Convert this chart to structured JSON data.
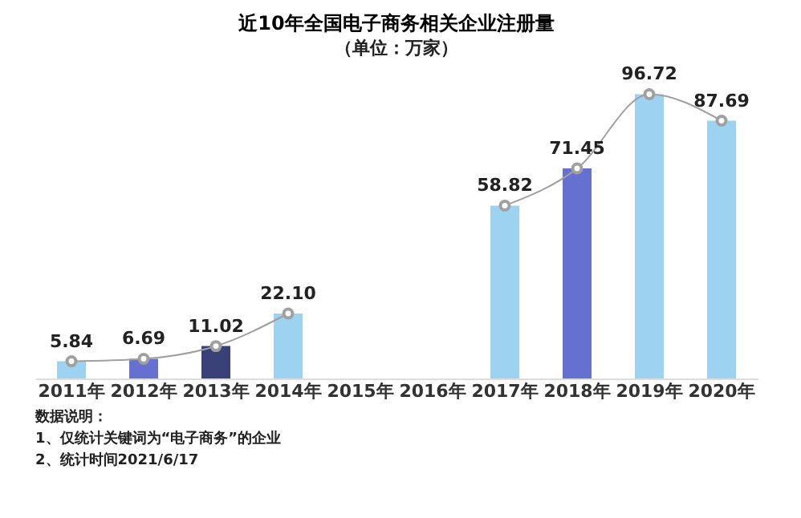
{
  "chart_data": {
    "type": "bar",
    "title": "近10年全国电子商务相关企业注册量",
    "subtitle": "（单位：万家）",
    "categories": [
      "2011年",
      "2012年",
      "2013年",
      "2014年",
      "2015年",
      "2016年",
      "2017年",
      "2018年",
      "2019年",
      "2020年"
    ],
    "series": [
      {
        "colors": [
          "#9dd3f0",
          "#6670d0",
          "#3a4178",
          "#9dd3f0",
          "#6670d0",
          "#3a4178",
          "#9dd3f0",
          "#6670d0",
          "#9dd3f0",
          "#9dd3f0"
        ],
        "values": [
          5.84,
          6.69,
          11.02,
          22.1,
          null,
          null,
          58.82,
          71.45,
          96.72,
          87.69
        ],
        "value_labels": [
          "5.84",
          "6.69",
          "11.02",
          "22.10",
          null,
          null,
          "58.82",
          "71.45",
          "96.72",
          "87.69"
        ]
      },
      {
        "type": "line",
        "color": "#a0a0a0",
        "marker": "circle",
        "values": [
          5.84,
          6.69,
          11.02,
          22.1,
          null,
          null,
          58.82,
          71.45,
          96.72,
          87.69
        ]
      }
    ],
    "annotations": [
      "数据说明：",
      "1、仅统计关键词为“电子商务”的企业",
      "2、统计时间2021/6/17"
    ]
  }
}
